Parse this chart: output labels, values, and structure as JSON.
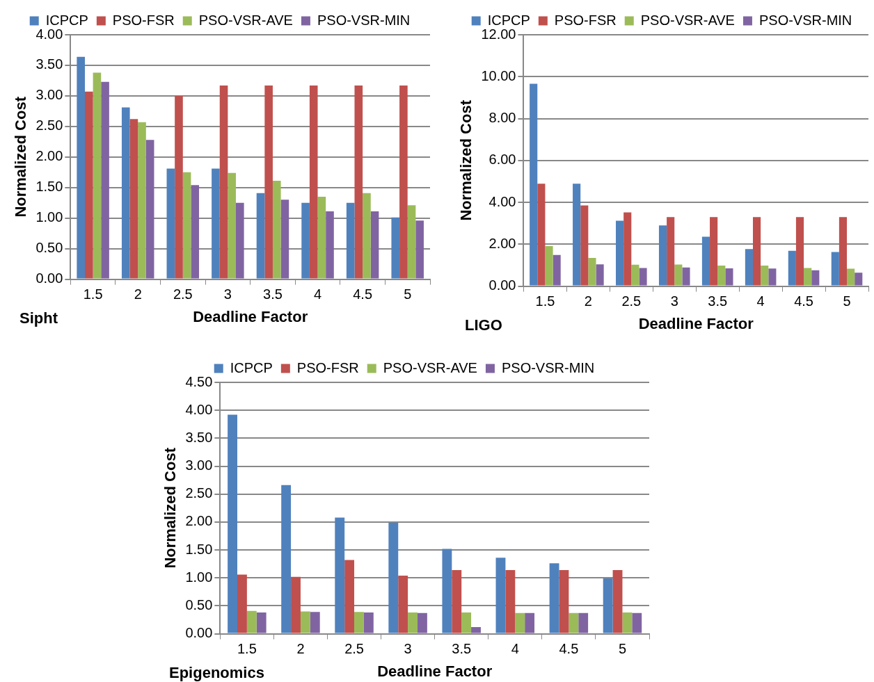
{
  "chart_data": [
    {
      "type": "bar",
      "xlabel": "Deadline Factor",
      "ylabel": "Normalized Cost",
      "annotations": [
        "Sipht"
      ],
      "categories": [
        "1.5",
        "2",
        "2.5",
        "3",
        "3.5",
        "4",
        "4.5",
        "5"
      ],
      "series": [
        {
          "name": "ICPCP",
          "color": "#4f81bd",
          "values": [
            3.64,
            2.81,
            1.81,
            1.81,
            1.41,
            1.25,
            1.25,
            1.01
          ]
        },
        {
          "name": "PSO-FSR",
          "color": "#c0504d",
          "values": [
            3.07,
            2.62,
            3.0,
            3.17,
            3.17,
            3.17,
            3.17,
            3.17
          ]
        },
        {
          "name": "PSO-VSR-AVE",
          "color": "#9bbb59",
          "values": [
            3.38,
            2.57,
            1.75,
            1.74,
            1.61,
            1.35,
            1.41,
            1.21
          ]
        },
        {
          "name": "PSO-VSR-MIN",
          "color": "#8064a2",
          "values": [
            3.23,
            2.28,
            1.54,
            1.25,
            1.3,
            1.11,
            1.11,
            0.96
          ]
        }
      ],
      "ylim": [
        0,
        4
      ],
      "yticks": [
        {
          "value": 0,
          "label": "0.00"
        },
        {
          "value": 0.5,
          "label": "0.50"
        },
        {
          "value": 1,
          "label": "1.00"
        },
        {
          "value": 1.5,
          "label": "1.50"
        },
        {
          "value": 2,
          "label": "2.00"
        },
        {
          "value": 2.5,
          "label": "2.50"
        },
        {
          "value": 3,
          "label": "3.00"
        },
        {
          "value": 3.5,
          "label": "3.50"
        },
        {
          "value": 4,
          "label": "4.00"
        }
      ],
      "grid": "y",
      "legend": "top"
    },
    {
      "type": "bar",
      "xlabel": "Deadline Factor",
      "ylabel": "Normalized Cost",
      "annotations": [
        "LIGO"
      ],
      "categories": [
        "1.5",
        "2",
        "2.5",
        "3",
        "3.5",
        "4",
        "4.5",
        "5"
      ],
      "series": [
        {
          "name": "ICPCP",
          "color": "#4f81bd",
          "values": [
            9.66,
            4.89,
            3.12,
            2.9,
            2.36,
            1.77,
            1.69,
            1.63
          ]
        },
        {
          "name": "PSO-FSR",
          "color": "#c0504d",
          "values": [
            4.89,
            3.85,
            3.52,
            3.3,
            3.3,
            3.3,
            3.3,
            3.3
          ]
        },
        {
          "name": "PSO-VSR-AVE",
          "color": "#9bbb59",
          "values": [
            1.91,
            1.35,
            1.02,
            1.03,
            0.98,
            0.98,
            0.87,
            0.83
          ]
        },
        {
          "name": "PSO-VSR-MIN",
          "color": "#8064a2",
          "values": [
            1.49,
            1.04,
            0.87,
            0.89,
            0.85,
            0.84,
            0.76,
            0.64
          ]
        }
      ],
      "ylim": [
        0,
        12
      ],
      "yticks": [
        {
          "value": 0,
          "label": "0.00"
        },
        {
          "value": 2,
          "label": "2.00"
        },
        {
          "value": 4,
          "label": "4.00"
        },
        {
          "value": 6,
          "label": "6.00"
        },
        {
          "value": 8,
          "label": "8.00"
        },
        {
          "value": 10,
          "label": "10.00"
        },
        {
          "value": 12,
          "label": "12.00"
        }
      ],
      "grid": "y",
      "legend": "top"
    },
    {
      "type": "bar",
      "xlabel": "Deadline Factor",
      "ylabel": "Normalized Cost",
      "annotations": [
        "Epigenomics"
      ],
      "categories": [
        "1.5",
        "2",
        "2.5",
        "3",
        "3.5",
        "4",
        "4.5",
        "5"
      ],
      "series": [
        {
          "name": "ICPCP",
          "color": "#4f81bd",
          "values": [
            3.92,
            2.66,
            2.08,
            1.99,
            1.52,
            1.36,
            1.26,
            0.99
          ]
        },
        {
          "name": "PSO-FSR",
          "color": "#c0504d",
          "values": [
            1.06,
            1.02,
            1.32,
            1.04,
            1.14,
            1.14,
            1.14,
            1.14
          ]
        },
        {
          "name": "PSO-VSR-AVE",
          "color": "#9bbb59",
          "values": [
            0.41,
            0.4,
            0.39,
            0.38,
            0.38,
            0.37,
            0.37,
            0.38
          ]
        },
        {
          "name": "PSO-VSR-MIN",
          "color": "#8064a2",
          "values": [
            0.38,
            0.39,
            0.38,
            0.37,
            0.12,
            0.37,
            0.37,
            0.37
          ]
        }
      ],
      "ylim": [
        0,
        4.5
      ],
      "yticks": [
        {
          "value": 0,
          "label": "0.00"
        },
        {
          "value": 0.5,
          "label": "0.50"
        },
        {
          "value": 1,
          "label": "1.00"
        },
        {
          "value": 1.5,
          "label": "1.50"
        },
        {
          "value": 2,
          "label": "2.00"
        },
        {
          "value": 2.5,
          "label": "2.50"
        },
        {
          "value": 3,
          "label": "3.00"
        },
        {
          "value": 3.5,
          "label": "3.50"
        },
        {
          "value": 4,
          "label": "4.00"
        },
        {
          "value": 4.5,
          "label": "4.50"
        }
      ],
      "grid": "y",
      "legend": "top"
    }
  ]
}
